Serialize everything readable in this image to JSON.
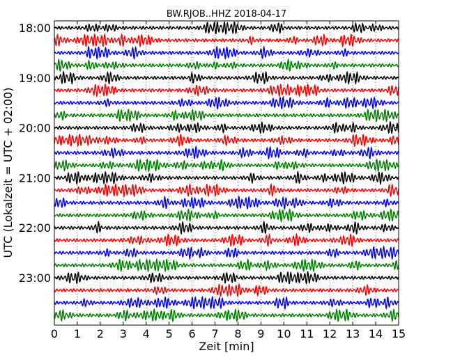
{
  "chart_data": {
    "type": "line",
    "title": "BW.RJOB..HHZ 2018-04-17",
    "xlabel": "Zeit  [min]",
    "ylabel": "UTC (Lokalzeit = UTC + 02:00)",
    "xlim": [
      0,
      15
    ],
    "x_ticks": [
      "0",
      "1",
      "2",
      "3",
      "4",
      "5",
      "6",
      "7",
      "8",
      "9",
      "10",
      "11",
      "12",
      "13",
      "14",
      "15"
    ],
    "y_ticks": [
      "18:00",
      "19:00",
      "20:00",
      "21:00",
      "22:00",
      "23:00"
    ],
    "grid": true,
    "trace_colors": [
      "#000000",
      "#ff0000",
      "#0000ff",
      "#008000"
    ],
    "traces": [
      {
        "start": "18:00"
      },
      {
        "start": "18:15"
      },
      {
        "start": "18:30"
      },
      {
        "start": "18:45"
      },
      {
        "start": "19:00"
      },
      {
        "start": "19:15"
      },
      {
        "start": "19:30"
      },
      {
        "start": "19:45"
      },
      {
        "start": "20:00"
      },
      {
        "start": "20:15"
      },
      {
        "start": "20:30"
      },
      {
        "start": "20:45"
      },
      {
        "start": "21:00"
      },
      {
        "start": "21:15"
      },
      {
        "start": "21:30"
      },
      {
        "start": "21:45"
      },
      {
        "start": "22:00"
      },
      {
        "start": "22:15"
      },
      {
        "start": "22:30"
      },
      {
        "start": "22:45"
      },
      {
        "start": "23:00"
      },
      {
        "start": "23:15"
      },
      {
        "start": "23:30"
      },
      {
        "start": "23:45"
      }
    ]
  }
}
